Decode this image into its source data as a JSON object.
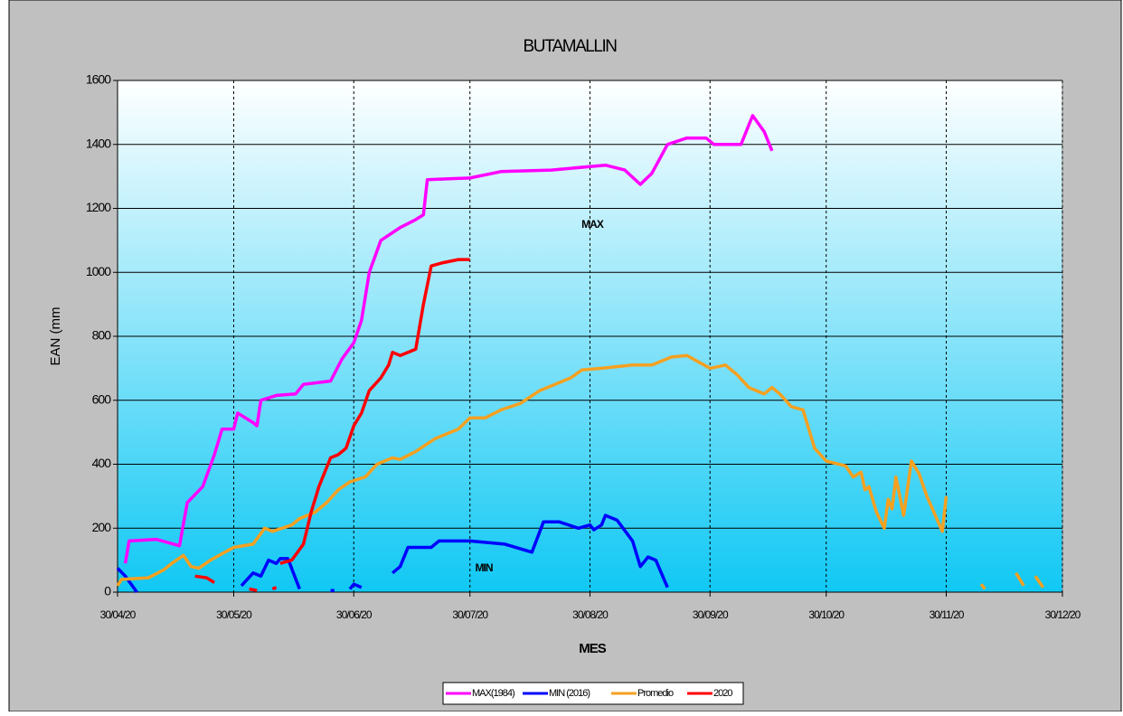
{
  "chart_data": {
    "type": "line",
    "title": "BUTAMALLIN",
    "xlabel": "MES",
    "ylabel": "EAN (mm",
    "xlim": [
      "30/04/20",
      "30/12/20"
    ],
    "xticks": [
      "30/04/20",
      "30/05/20",
      "30/06/20",
      "30/07/20",
      "30/08/20",
      "30/09/20",
      "30/10/20",
      "30/11/20",
      "30/12/20"
    ],
    "ylim": [
      0,
      1600
    ],
    "yticks": [
      0,
      200,
      400,
      600,
      800,
      1000,
      1200,
      1400,
      1600
    ],
    "grid": true,
    "legend": "bottom",
    "annotations": [
      {
        "text": "MAX",
        "color": "#ff00ff"
      },
      {
        "text": "MIN",
        "color": "#0000ff"
      }
    ],
    "series": [
      {
        "name": "MAX(1984)",
        "color": "#ff00ff",
        "x": [
          "02/05/20",
          "03/05/20",
          "10/05/20",
          "16/05/20",
          "18/05/20",
          "22/05/20",
          "25/05/20",
          "27/05/20",
          "30/05/20",
          "31/05/20",
          "04/06/20",
          "05/06/20",
          "06/06/20",
          "10/06/20",
          "15/06/20",
          "17/06/20",
          "24/06/20",
          "27/06/20",
          "30/06/20",
          "02/07/20",
          "04/07/20",
          "07/07/20",
          "12/07/20",
          "16/07/20",
          "18/07/20",
          "19/07/20",
          "30/07/20",
          "07/08/20",
          "20/08/20",
          "03/09/20",
          "08/09/20",
          "12/09/20",
          "15/09/20",
          "19/09/20",
          "24/09/20",
          "29/09/20",
          "01/10/20",
          "08/10/20",
          "11/10/20",
          "14/10/20",
          "16/10/20"
        ],
        "values": [
          90,
          160,
          165,
          145,
          280,
          330,
          430,
          510,
          510,
          560,
          530,
          520,
          600,
          615,
          620,
          650,
          660,
          730,
          780,
          850,
          1000,
          1100,
          1140,
          1165,
          1180,
          1290,
          1295,
          1315,
          1320,
          1335,
          1320,
          1275,
          1310,
          1400,
          1420,
          1420,
          1400,
          1400,
          1490,
          1440,
          1380
        ]
      },
      {
        "name": "MIN (2016)",
        "color": "#0000ff",
        "x": [
          "30/04/20",
          "02/05/20",
          "05/05/20",
          "20/05/20",
          "01/06/20",
          "04/06/20",
          "06/06/20",
          "08/06/20",
          "10/06/20",
          "11/06/20",
          "13/06/20",
          "16/06/20",
          "20/06/20",
          "24/06/20",
          "25/06/20",
          "27/06/20",
          "29/06/20",
          "30/06/20",
          "02/07/20",
          "06/07/20",
          "10/07/20",
          "12/07/20",
          "14/07/20",
          "20/07/20",
          "22/07/20",
          "30/07/20",
          "08/08/20",
          "15/08/20",
          "18/08/20",
          "22/08/20",
          "27/08/20",
          "30/08/20",
          "31/08/20",
          "02/09/20",
          "03/09/20",
          "06/09/20",
          "10/09/20",
          "12/09/20",
          "14/09/20",
          "16/09/20",
          "19/09/20"
        ],
        "values": [
          75,
          50,
          0,
          null,
          20,
          60,
          50,
          100,
          90,
          105,
          105,
          10,
          null,
          5,
          5,
          null,
          10,
          25,
          15,
          null,
          60,
          80,
          140,
          140,
          160,
          160,
          150,
          125,
          220,
          220,
          200,
          210,
          195,
          210,
          240,
          225,
          160,
          80,
          110,
          100,
          15
        ]
      },
      {
        "name": "Promedio",
        "color": "#f5a020",
        "x": [
          "30/04/20",
          "01/05/20",
          "08/05/20",
          "12/05/20",
          "14/05/20",
          "17/05/20",
          "19/05/20",
          "21/05/20",
          "24/05/20",
          "27/05/20",
          "30/05/20",
          "04/06/20",
          "07/06/20",
          "09/06/20",
          "14/06/20",
          "16/06/20",
          "20/06/20",
          "23/06/20",
          "26/06/20",
          "29/06/20",
          "03/07/20",
          "06/07/20",
          "10/07/20",
          "12/07/20",
          "16/07/20",
          "21/07/20",
          "27/07/20",
          "30/07/20",
          "03/08/20",
          "07/08/20",
          "12/08/20",
          "17/08/20",
          "21/08/20",
          "25/08/20",
          "28/08/20",
          "02/09/20",
          "10/09/20",
          "15/09/20",
          "20/09/20",
          "24/09/20",
          "27/09/20",
          "30/09/20",
          "04/10/20",
          "07/10/20",
          "10/10/20",
          "14/10/20",
          "16/10/20",
          "18/10/20",
          "21/10/20",
          "24/10/20",
          "27/10/20",
          "30/10/20",
          "04/11/20",
          "06/11/20",
          "08/11/20",
          "09/11/20",
          "10/11/20",
          "12/11/20",
          "14/11/20",
          "15/11/20",
          "16/11/20",
          "17/11/20",
          "19/11/20",
          "21/11/20",
          "23/11/20",
          "25/11/20",
          "29/11/20",
          "30/11/20",
          "05/12/20",
          "09/12/20",
          "10/12/20",
          "14/12/20",
          "18/12/20",
          "20/12/20",
          "22/12/20",
          "23/12/20",
          "25/12/20"
        ],
        "values": [
          20,
          40,
          45,
          70,
          90,
          115,
          80,
          75,
          100,
          120,
          140,
          150,
          200,
          190,
          210,
          230,
          250,
          280,
          320,
          345,
          360,
          400,
          420,
          415,
          440,
          480,
          510,
          545,
          545,
          570,
          590,
          630,
          650,
          670,
          695,
          700,
          710,
          710,
          735,
          740,
          720,
          700,
          710,
          680,
          640,
          620,
          640,
          620,
          580,
          570,
          450,
          410,
          395,
          360,
          375,
          320,
          330,
          250,
          200,
          290,
          260,
          360,
          240,
          410,
          370,
          300,
          190,
          300,
          null,
          25,
          10,
          null,
          60,
          20,
          null,
          50,
          15
        ]
      },
      {
        "name": "2020",
        "color": "#ff0000",
        "x": [
          "20/05/20",
          "23/05/20",
          "25/05/20",
          "29/05/20",
          "03/06/20",
          "05/06/20",
          "07/06/20",
          "09/06/20",
          "10/06/20",
          "10/06/20",
          "11/06/20",
          "14/06/20",
          "17/06/20",
          "19/06/20",
          "21/06/20",
          "24/06/20",
          "26/06/20",
          "28/06/20",
          "30/06/20",
          "02/07/20",
          "04/07/20",
          "07/07/20",
          "09/07/20",
          "10/07/20",
          "12/07/20",
          "16/07/20",
          "18/07/20",
          "20/07/20",
          "23/07/20",
          "27/07/20",
          "30/07/20"
        ],
        "values": [
          50,
          45,
          30,
          null,
          10,
          5,
          null,
          10,
          15,
          null,
          90,
          100,
          150,
          250,
          330,
          420,
          430,
          450,
          520,
          560,
          630,
          670,
          710,
          750,
          740,
          760,
          900,
          1020,
          1030,
          1040,
          1040
        ]
      }
    ]
  }
}
